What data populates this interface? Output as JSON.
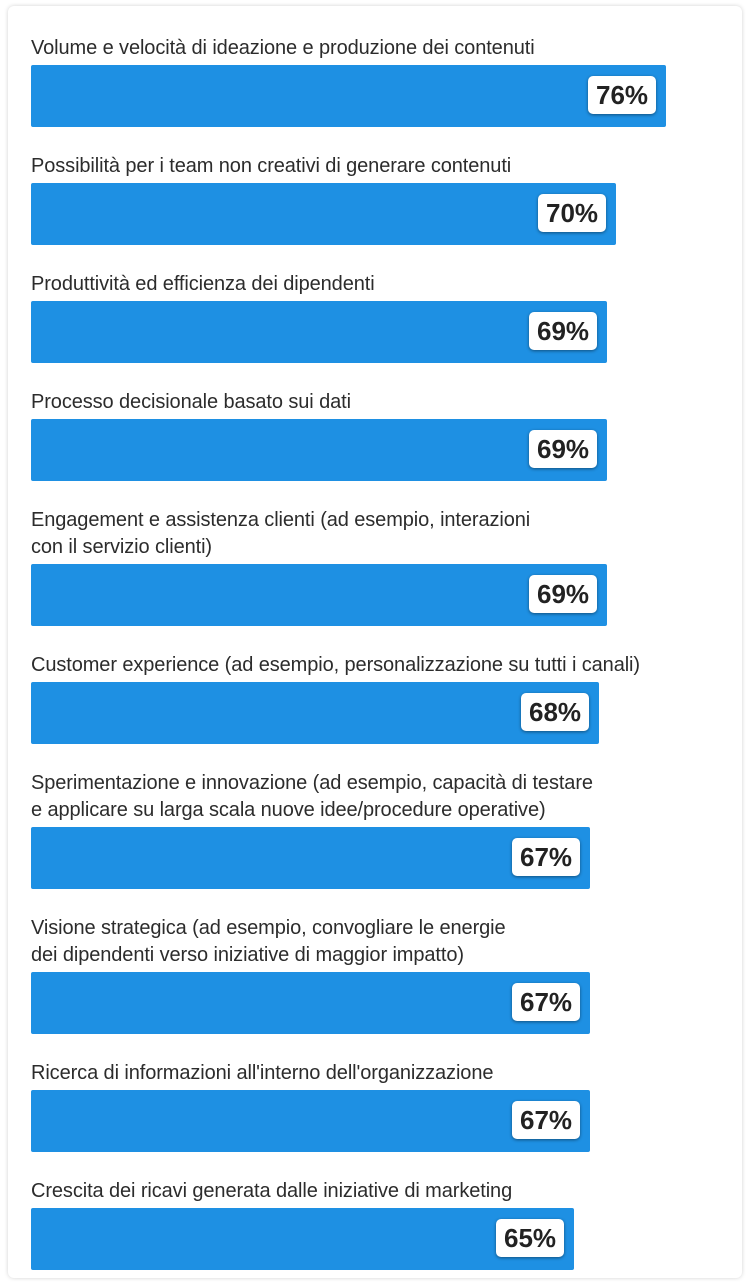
{
  "chart_data": {
    "type": "bar",
    "orientation": "horizontal",
    "categories": [
      [
        "Volume e velocità di ideazione e produzione dei contenuti"
      ],
      [
        "Possibilità per i team non creativi di generare contenuti"
      ],
      [
        "Produttività ed efficienza dei dipendenti"
      ],
      [
        "Processo decisionale basato sui dati"
      ],
      [
        "Engagement e assistenza clienti (ad esempio, interazioni",
        "con il servizio clienti)"
      ],
      [
        "Customer experience (ad esempio, personalizzazione su tutti i canali)"
      ],
      [
        "Sperimentazione e innovazione (ad esempio, capacità di testare",
        "e applicare su larga scala nuove idee/procedure operative)"
      ],
      [
        "Visione strategica (ad esempio, convogliare le energie",
        "dei dipendenti verso iniziative di maggior impatto)"
      ],
      [
        "Ricerca di informazioni all'interno dell'organizzazione"
      ],
      [
        "Crescita dei ricavi generata dalle iniziative di marketing"
      ]
    ],
    "values": [
      76,
      70,
      69,
      69,
      69,
      68,
      67,
      67,
      67,
      65
    ],
    "value_labels": [
      "76%",
      "70%",
      "69%",
      "69%",
      "69%",
      "68%",
      "67%",
      "67%",
      "67%",
      "65%"
    ],
    "unit": "%",
    "bar_color": "#1e90e3",
    "label_box_color": "#ffffff",
    "text_color": "#2c2c2c"
  }
}
